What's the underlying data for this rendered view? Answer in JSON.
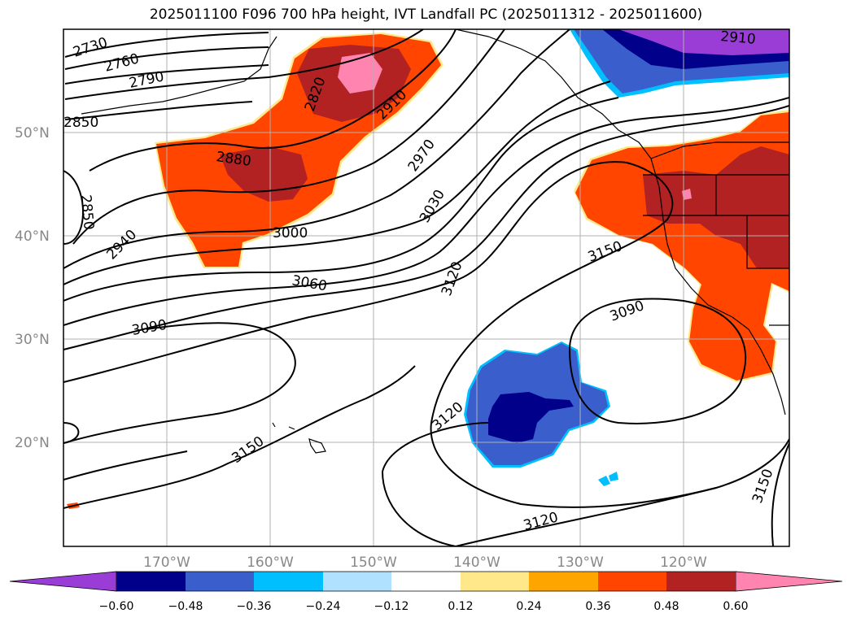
{
  "title": "2025011100 F096 700 hPa height, IVT Landfall PC (2025011312 - 2025011600)",
  "map": {
    "lat_ticks": [
      "50°N",
      "40°N",
      "30°N",
      "20°N"
    ],
    "lon_ticks": [
      "170°W",
      "160°W",
      "150°W",
      "140°W",
      "130°W",
      "120°W"
    ],
    "contour_labels": [
      "2730",
      "2760",
      "2790",
      "2820",
      "2850",
      "2850",
      "2880",
      "2910",
      "2910",
      "2940",
      "2970",
      "3000",
      "3030",
      "3060",
      "3090",
      "3090",
      "3120",
      "3120",
      "3120",
      "3150",
      "3150",
      "3150"
    ]
  },
  "colorbar": {
    "tick_labels": [
      "−0.60",
      "−0.48",
      "−0.36",
      "−0.24",
      "−0.12",
      "0.12",
      "0.24",
      "0.36",
      "0.48",
      "0.60"
    ],
    "colors": [
      "#9a3dd6",
      "#00008b",
      "#3a5fcd",
      "#00bfff",
      "#b0e2ff",
      "#ffffff",
      "#ffe88a",
      "#ffa500",
      "#ff4500",
      "#b22222",
      "#ff85b0"
    ]
  }
}
